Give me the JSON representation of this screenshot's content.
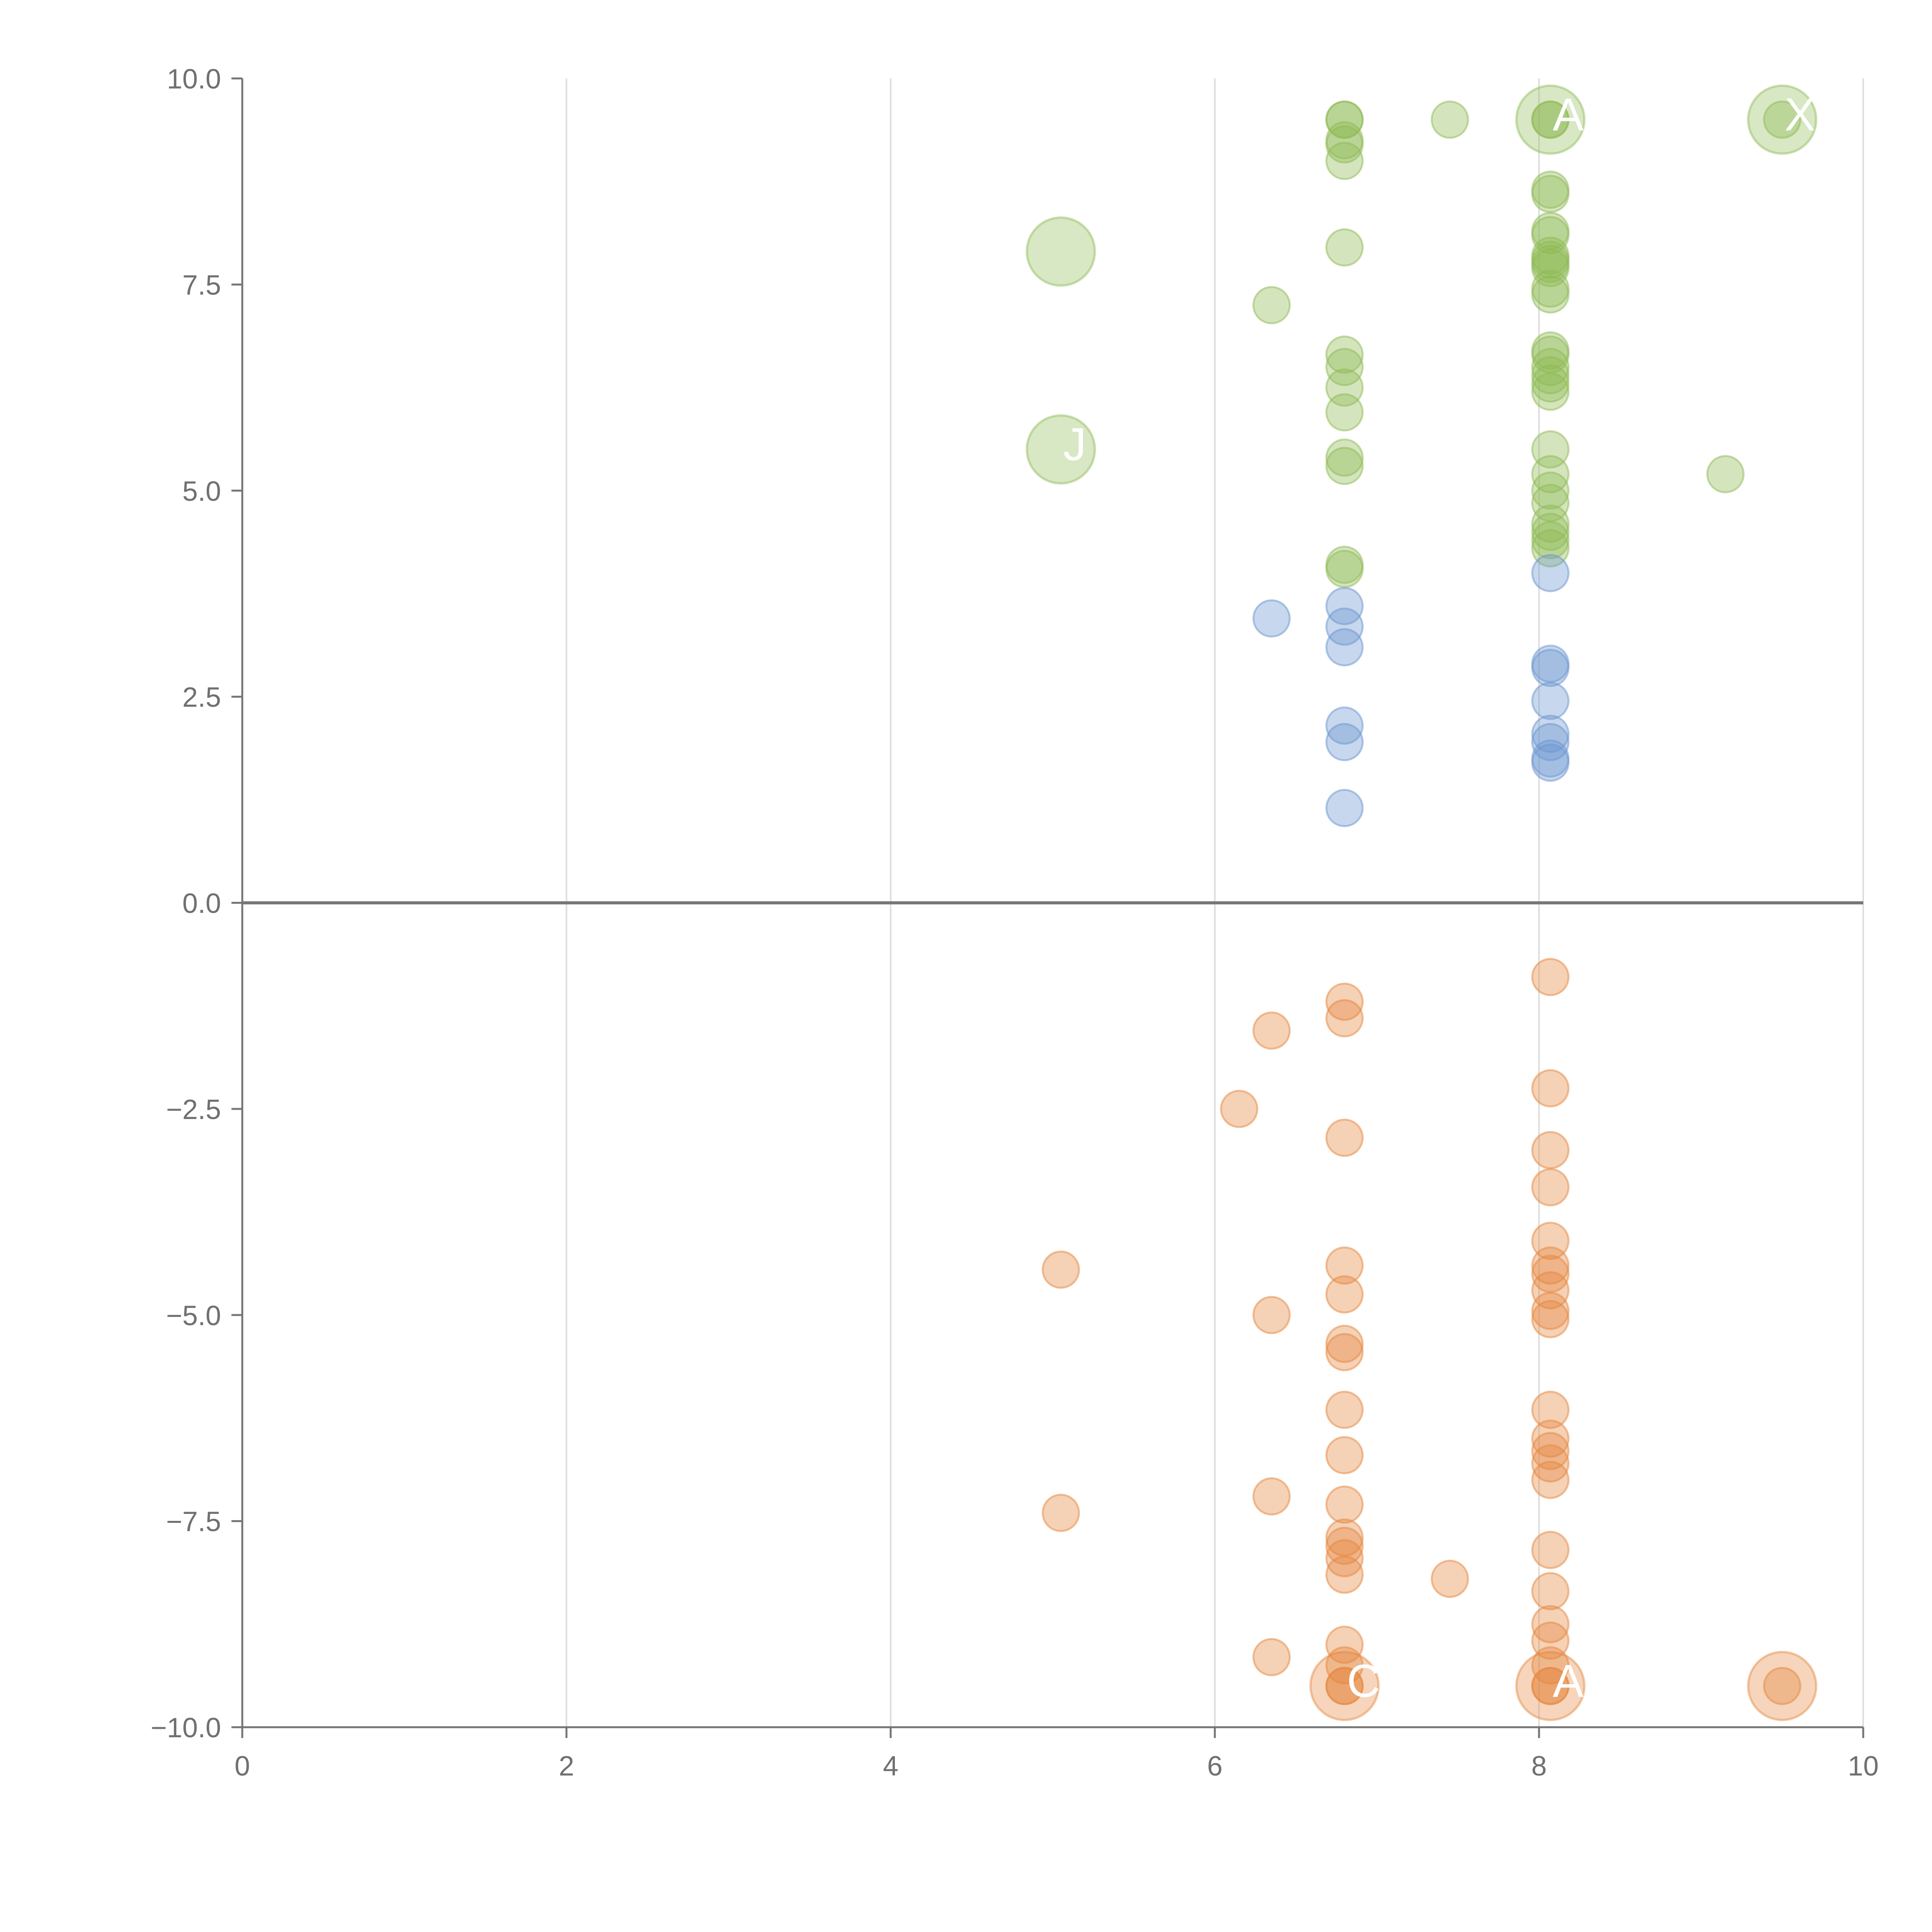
{
  "chart_data": {
    "type": "scatter",
    "title": "",
    "xlabel": "",
    "ylabel": "",
    "xlim": [
      0,
      10
    ],
    "ylim": [
      -10,
      10
    ],
    "grid": {
      "x": true,
      "y": false
    },
    "x_ticks": [
      0,
      2,
      4,
      6,
      8,
      10
    ],
    "y_ticks": [
      10.0,
      7.5,
      5.0,
      2.5,
      0.0,
      -2.5,
      -5.0,
      -7.5,
      -10.0
    ],
    "x_tick_labels": [
      "0",
      "2",
      "4",
      "6",
      "8",
      "10"
    ],
    "y_tick_labels": [
      "10.0",
      "7.5",
      "5.0",
      "2.5",
      "0.0",
      "−2.5",
      "−5.0",
      "−7.5",
      "−10.0"
    ],
    "zero_line": 0,
    "colors": {
      "green": "#8fba55",
      "blue": "#6b95cf",
      "orange": "#e5873e",
      "axis": "#757575",
      "grid": "#dddddd",
      "tick_text": "#707070",
      "label_text": "#ffffff"
    },
    "series": [
      {
        "name": "green",
        "color": "#8fba55",
        "points": [
          [
            6.8,
            9.5
          ],
          [
            6.8,
            9.5
          ],
          [
            6.8,
            9.25
          ],
          [
            6.8,
            9.2
          ],
          [
            6.8,
            9.0
          ],
          [
            7.45,
            9.5
          ],
          [
            8.07,
            9.5
          ],
          [
            8.07,
            9.5
          ],
          [
            9.5,
            9.5
          ],
          [
            8.07,
            8.65
          ],
          [
            8.07,
            8.6
          ],
          [
            8.07,
            8.15
          ],
          [
            8.07,
            8.1
          ],
          [
            8.07,
            7.85
          ],
          [
            8.07,
            7.8
          ],
          [
            8.07,
            7.75
          ],
          [
            8.07,
            7.7
          ],
          [
            8.07,
            7.45
          ],
          [
            8.07,
            7.38
          ],
          [
            6.8,
            7.95
          ],
          [
            6.35,
            7.25
          ],
          [
            6.8,
            6.65
          ],
          [
            6.8,
            6.5
          ],
          [
            6.8,
            6.25
          ],
          [
            6.8,
            5.95
          ],
          [
            6.8,
            5.4
          ],
          [
            6.8,
            5.3
          ],
          [
            8.07,
            6.7
          ],
          [
            8.07,
            6.65
          ],
          [
            8.07,
            6.5
          ],
          [
            8.07,
            6.4
          ],
          [
            8.07,
            6.3
          ],
          [
            8.07,
            6.2
          ],
          [
            8.07,
            5.5
          ],
          [
            8.07,
            5.2
          ],
          [
            8.07,
            5.0
          ],
          [
            8.07,
            4.85
          ],
          [
            8.07,
            4.6
          ],
          [
            8.07,
            4.5
          ],
          [
            8.07,
            4.4
          ],
          [
            8.07,
            4.3
          ],
          [
            9.15,
            5.2
          ],
          [
            6.8,
            4.1
          ],
          [
            6.8,
            4.05
          ]
        ],
        "bubbles": [
          [
            5.05,
            7.9
          ],
          [
            5.05,
            5.5
          ],
          [
            8.07,
            9.5
          ],
          [
            9.5,
            9.5
          ]
        ]
      },
      {
        "name": "blue",
        "color": "#6b95cf",
        "points": [
          [
            8.07,
            4.0
          ],
          [
            6.35,
            3.45
          ],
          [
            6.8,
            3.6
          ],
          [
            6.8,
            3.35
          ],
          [
            6.8,
            3.1
          ],
          [
            8.07,
            2.9
          ],
          [
            8.07,
            2.85
          ],
          [
            8.07,
            2.45
          ],
          [
            6.8,
            2.15
          ],
          [
            6.8,
            1.95
          ],
          [
            8.07,
            2.05
          ],
          [
            8.07,
            1.95
          ],
          [
            8.07,
            1.75
          ],
          [
            8.07,
            1.7
          ],
          [
            6.8,
            1.15
          ]
        ],
        "bubbles": []
      },
      {
        "name": "orange",
        "color": "#e5873e",
        "points": [
          [
            8.07,
            -0.9
          ],
          [
            6.8,
            -1.2
          ],
          [
            6.8,
            -1.4
          ],
          [
            6.35,
            -1.55
          ],
          [
            6.15,
            -2.5
          ],
          [
            8.07,
            -2.25
          ],
          [
            6.8,
            -2.85
          ],
          [
            8.07,
            -3.0
          ],
          [
            8.07,
            -3.45
          ],
          [
            8.07,
            -4.1
          ],
          [
            8.07,
            -4.4
          ],
          [
            8.07,
            -4.5
          ],
          [
            8.07,
            -4.7
          ],
          [
            8.07,
            -4.95
          ],
          [
            8.07,
            -5.05
          ],
          [
            5.05,
            -4.45
          ],
          [
            6.8,
            -4.4
          ],
          [
            6.8,
            -4.75
          ],
          [
            6.35,
            -5.0
          ],
          [
            6.8,
            -5.35
          ],
          [
            6.8,
            -5.45
          ],
          [
            6.8,
            -6.15
          ],
          [
            6.8,
            -6.7
          ],
          [
            8.07,
            -6.15
          ],
          [
            8.07,
            -6.5
          ],
          [
            8.07,
            -6.65
          ],
          [
            8.07,
            -6.8
          ],
          [
            8.07,
            -7.0
          ],
          [
            5.05,
            -7.4
          ],
          [
            6.35,
            -7.2
          ],
          [
            6.8,
            -7.3
          ],
          [
            6.8,
            -7.7
          ],
          [
            6.8,
            -7.8
          ],
          [
            6.8,
            -7.95
          ],
          [
            6.8,
            -8.15
          ],
          [
            7.45,
            -8.2
          ],
          [
            8.07,
            -7.85
          ],
          [
            8.07,
            -8.35
          ],
          [
            8.07,
            -8.75
          ],
          [
            8.07,
            -8.95
          ],
          [
            8.07,
            -9.25
          ],
          [
            6.8,
            -9.0
          ],
          [
            6.8,
            -9.25
          ],
          [
            6.35,
            -9.15
          ],
          [
            6.8,
            -9.5
          ],
          [
            6.8,
            -9.5
          ],
          [
            8.07,
            -9.5
          ],
          [
            8.07,
            -9.5
          ],
          [
            9.5,
            -9.5
          ]
        ],
        "bubbles": [
          [
            6.8,
            -9.5
          ],
          [
            8.07,
            -9.5
          ],
          [
            9.5,
            -9.5
          ]
        ]
      }
    ],
    "annotations": [
      {
        "text": "A",
        "x": 8.07,
        "y": 9.5
      },
      {
        "text": "X",
        "x": 9.5,
        "y": 9.5
      },
      {
        "text": "J",
        "x": 5.05,
        "y": 5.5
      },
      {
        "text": "C",
        "x": 6.8,
        "y": -9.5
      },
      {
        "text": "A",
        "x": 8.07,
        "y": -9.5
      }
    ]
  }
}
